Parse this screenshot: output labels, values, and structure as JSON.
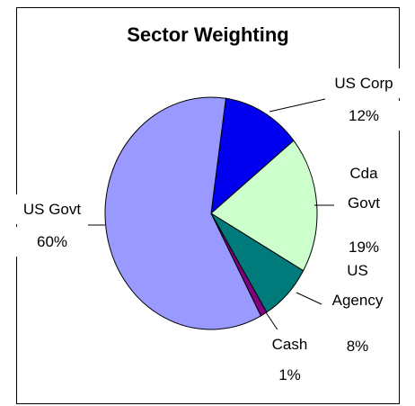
{
  "chart_data": {
    "type": "pie",
    "title": "Sector Weighting",
    "categories": [
      "US Corp",
      "Cda Govt",
      "US Agency",
      "Cash",
      "US Govt"
    ],
    "values": [
      12,
      19,
      8,
      1,
      60
    ],
    "value_labels": [
      "12%",
      "19%",
      "8%",
      "1%",
      "60%"
    ],
    "colors": [
      "#0000ee",
      "#ccffcc",
      "#007a7a",
      "#800080",
      "#9999ff"
    ]
  }
}
